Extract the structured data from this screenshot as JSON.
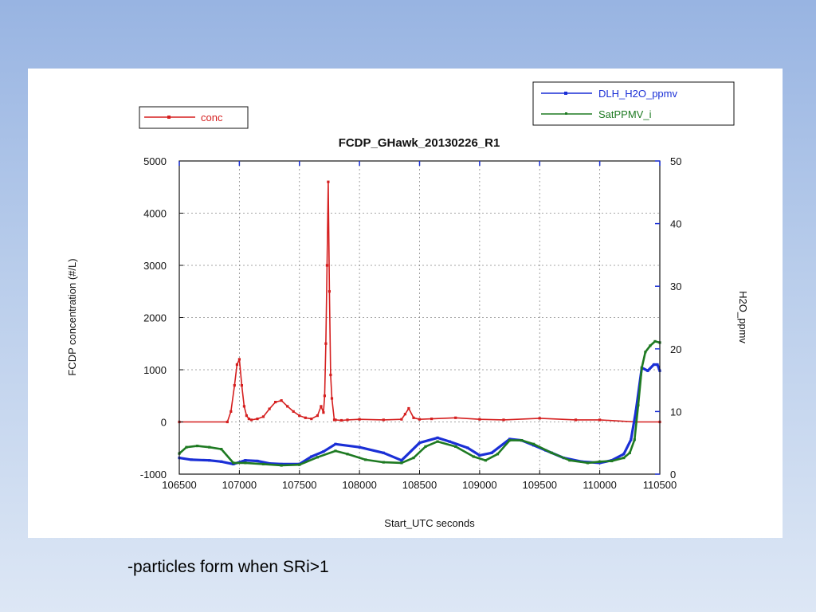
{
  "caption": "-particles form when SRi>1",
  "colors": {
    "conc": "#d51f1f",
    "dlh": "#1a2fd6",
    "sat": "#1e7a22",
    "background_top": "#98b4e2",
    "background_bottom": "#dde7f5"
  },
  "chart_data": {
    "type": "line",
    "title": "FCDP_GHawk_20130226_R1",
    "xlabel": "Start_UTC seconds",
    "ylabel_left": "FCDP concentration  (#/L)",
    "ylabel_right": "H2O_ppmv",
    "xlim": [
      106500,
      110500
    ],
    "ylim_left": [
      -1000,
      5000
    ],
    "ylim_right": [
      0,
      50
    ],
    "x_ticks": [
      106500,
      107000,
      107500,
      108000,
      108500,
      109000,
      109500,
      110000,
      110500
    ],
    "y_ticks_left": [
      -1000,
      0,
      1000,
      2000,
      3000,
      4000,
      5000
    ],
    "y_ticks_right": [
      0,
      10,
      20,
      30,
      40,
      50
    ],
    "grid": "dotted",
    "legend_left": [
      "conc"
    ],
    "legend_right": [
      "DLH_H2O_ppmv",
      "SatPPMV_i"
    ],
    "series": [
      {
        "name": "conc",
        "axis": "left",
        "x": [
          106500,
          106900,
          106930,
          106960,
          106980,
          107000,
          107020,
          107040,
          107060,
          107080,
          107100,
          107150,
          107200,
          107250,
          107300,
          107350,
          107400,
          107450,
          107500,
          107550,
          107600,
          107650,
          107680,
          107700,
          107710,
          107720,
          107730,
          107740,
          107750,
          107760,
          107770,
          107790,
          107800,
          107850,
          107900,
          108000,
          108200,
          108350,
          108380,
          108410,
          108450,
          108500,
          108600,
          108800,
          109000,
          109200,
          109500,
          109800,
          110000,
          110300,
          110500
        ],
        "y": [
          0,
          0,
          200,
          700,
          1100,
          1200,
          700,
          300,
          120,
          60,
          40,
          60,
          100,
          250,
          380,
          410,
          300,
          200,
          120,
          80,
          60,
          120,
          300,
          180,
          500,
          1500,
          3000,
          4600,
          2500,
          900,
          450,
          40,
          40,
          30,
          40,
          50,
          40,
          50,
          150,
          260,
          80,
          50,
          60,
          80,
          50,
          40,
          70,
          40,
          40,
          0,
          0
        ]
      },
      {
        "name": "DLH_H2O_ppmv",
        "axis": "right",
        "x": [
          106500,
          106600,
          106750,
          106850,
          106950,
          107050,
          107150,
          107250,
          107350,
          107500,
          107600,
          107700,
          107800,
          108000,
          108200,
          108350,
          108500,
          108650,
          108750,
          108900,
          109000,
          109100,
          109250,
          109350,
          109450,
          109550,
          109700,
          109850,
          110000,
          110100,
          110200,
          110260,
          110300,
          110350,
          110400,
          110450,
          110480,
          110500
        ],
        "y": [
          2.6,
          2.3,
          2.2,
          2.0,
          1.6,
          2.2,
          2.1,
          1.7,
          1.6,
          1.6,
          2.8,
          3.6,
          4.8,
          4.3,
          3.4,
          2.2,
          5.0,
          5.8,
          5.2,
          4.2,
          3.0,
          3.4,
          5.6,
          5.4,
          4.6,
          3.8,
          2.6,
          2.0,
          1.8,
          2.2,
          3.2,
          5.5,
          10,
          17,
          16.5,
          17.5,
          17.5,
          16.5
        ]
      },
      {
        "name": "SatPPMV_i",
        "axis": "right",
        "x": [
          106500,
          106560,
          106650,
          106750,
          106850,
          106950,
          107050,
          107200,
          107350,
          107500,
          107650,
          107800,
          107900,
          108050,
          108200,
          108350,
          108450,
          108550,
          108650,
          108800,
          108950,
          109050,
          109150,
          109250,
          109350,
          109450,
          109600,
          109750,
          109900,
          110000,
          110100,
          110200,
          110250,
          110290,
          110320,
          110350,
          110380,
          110420,
          110460,
          110500
        ],
        "y": [
          3.3,
          4.3,
          4.5,
          4.3,
          4.0,
          1.8,
          1.8,
          1.6,
          1.4,
          1.5,
          2.7,
          3.7,
          3.2,
          2.3,
          1.9,
          1.8,
          2.6,
          4.4,
          5.2,
          4.4,
          2.8,
          2.2,
          3.2,
          5.4,
          5.4,
          4.8,
          3.4,
          2.2,
          1.8,
          2.0,
          2.1,
          2.6,
          3.4,
          5.5,
          11,
          17,
          19.5,
          20.5,
          21.2,
          21
        ]
      }
    ]
  }
}
